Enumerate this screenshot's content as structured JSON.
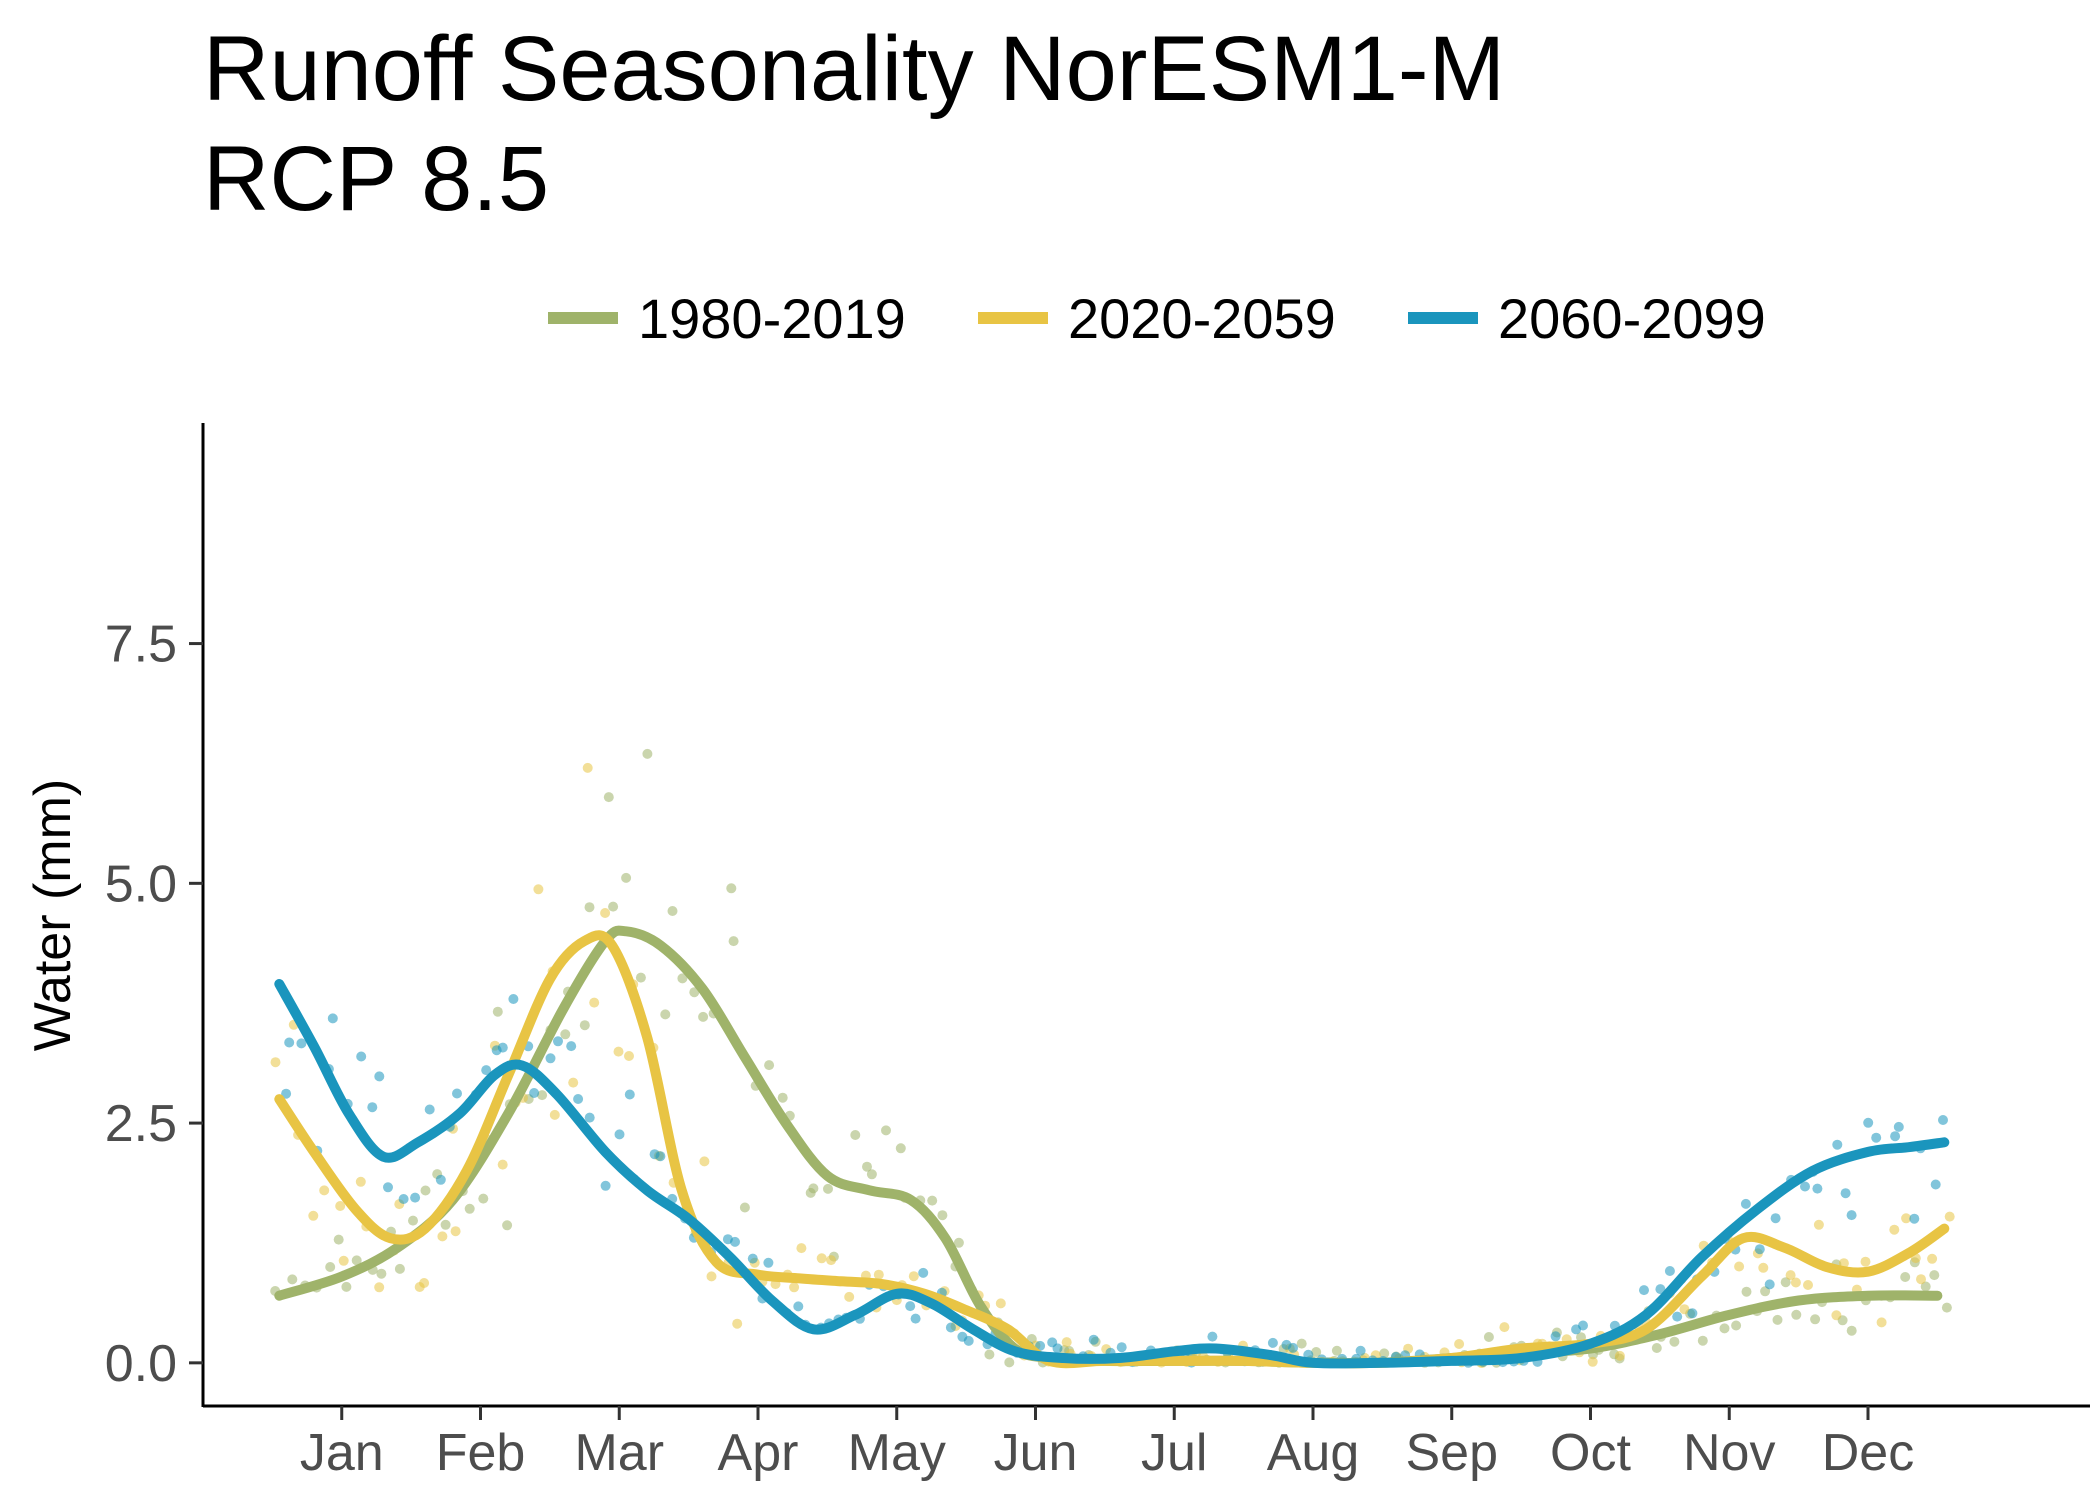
{
  "chart_data": {
    "type": "line",
    "title_lines": [
      "Runoff Seasonality NorESM1-M",
      "RCP 8.5"
    ],
    "xlabel": "",
    "ylabel": "Water (mm)",
    "categories": [
      "Jan",
      "Feb",
      "Mar",
      "Apr",
      "May",
      "Jun",
      "Jul",
      "Aug",
      "Sep",
      "Oct",
      "Nov",
      "Dec"
    ],
    "x_tick_positions": [
      1,
      2,
      3,
      4,
      5,
      6,
      7,
      8,
      9,
      10,
      11,
      12
    ],
    "xlim": [
      0.0,
      13.6
    ],
    "y_ticks": [
      0.0,
      2.5,
      5.0,
      7.5
    ],
    "y_tick_labels": [
      "0.0",
      "2.5",
      "5.0",
      "7.5"
    ],
    "ylim": [
      -0.45,
      9.8
    ],
    "grid": false,
    "legend_position": "top",
    "series": [
      {
        "name": "1980-2019",
        "color": "#9fb36a",
        "x": [
          0.55,
          1.0,
          1.4,
          1.8,
          2.2,
          2.6,
          2.9,
          3.05,
          3.3,
          3.6,
          3.9,
          4.2,
          4.5,
          4.8,
          5.1,
          5.35,
          5.6,
          5.85,
          6.1,
          6.5,
          7.0,
          7.5,
          8.0,
          8.5,
          9.0,
          9.5,
          10.0,
          10.5,
          11.0,
          11.5,
          12.0,
          12.5
        ],
        "y": [
          0.7,
          0.9,
          1.2,
          1.7,
          2.6,
          3.7,
          4.4,
          4.5,
          4.35,
          3.9,
          3.2,
          2.5,
          1.95,
          1.8,
          1.7,
          1.3,
          0.6,
          0.15,
          0.05,
          0.02,
          0.02,
          0.02,
          0.0,
          0.0,
          0.05,
          0.1,
          0.15,
          0.3,
          0.5,
          0.65,
          0.7,
          0.7
        ]
      },
      {
        "name": "2020-2059",
        "color": "#e8c444",
        "x": [
          0.55,
          0.8,
          1.1,
          1.35,
          1.6,
          1.9,
          2.2,
          2.5,
          2.75,
          2.95,
          3.2,
          3.45,
          3.7,
          4.0,
          4.3,
          4.6,
          4.9,
          5.2,
          5.5,
          5.8,
          6.1,
          6.5,
          7.0,
          7.5,
          8.0,
          8.5,
          9.0,
          9.5,
          10.0,
          10.4,
          10.8,
          11.1,
          11.4,
          11.7,
          12.0,
          12.3,
          12.55
        ],
        "y": [
          2.75,
          2.2,
          1.6,
          1.3,
          1.4,
          2.0,
          3.0,
          4.0,
          4.4,
          4.35,
          3.4,
          1.8,
          1.05,
          0.92,
          0.88,
          0.85,
          0.82,
          0.72,
          0.55,
          0.35,
          0.02,
          0.02,
          0.02,
          0.02,
          0.0,
          0.0,
          0.05,
          0.15,
          0.2,
          0.35,
          0.9,
          1.3,
          1.2,
          1.0,
          0.95,
          1.15,
          1.4
        ]
      },
      {
        "name": "2060-2099",
        "color": "#1a95bd",
        "x": [
          0.55,
          0.8,
          1.05,
          1.3,
          1.55,
          1.85,
          2.1,
          2.3,
          2.55,
          2.9,
          3.2,
          3.5,
          3.8,
          4.1,
          4.4,
          4.7,
          5.0,
          5.25,
          5.55,
          5.85,
          6.2,
          6.6,
          7.0,
          7.3,
          7.7,
          8.0,
          8.5,
          9.0,
          9.5,
          10.0,
          10.4,
          10.8,
          11.2,
          11.6,
          12.0,
          12.3,
          12.55
        ],
        "y": [
          3.95,
          3.3,
          2.6,
          2.15,
          2.3,
          2.6,
          3.0,
          3.1,
          2.8,
          2.2,
          1.8,
          1.5,
          1.1,
          0.65,
          0.35,
          0.5,
          0.72,
          0.62,
          0.35,
          0.12,
          0.05,
          0.05,
          0.12,
          0.15,
          0.08,
          0.0,
          0.0,
          0.02,
          0.05,
          0.2,
          0.5,
          1.1,
          1.6,
          2.0,
          2.2,
          2.25,
          2.3
        ]
      }
    ]
  }
}
